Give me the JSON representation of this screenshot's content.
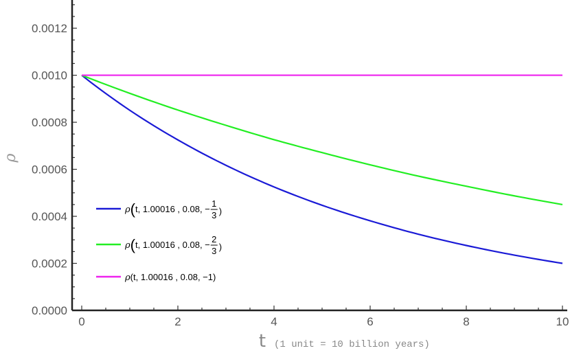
{
  "chart_data": {
    "type": "line",
    "xlabel": "t",
    "xlabel_note": "(1 unit = 10  billion years)",
    "ylabel": "ρ",
    "xlim": [
      -0.2,
      10.1
    ],
    "ylim": [
      0,
      0.00132
    ],
    "x_ticks": [
      0,
      2,
      4,
      6,
      8,
      10
    ],
    "x_tick_labels": [
      "0",
      "2",
      "4",
      "6",
      "8",
      "10"
    ],
    "y_ticks": [
      0,
      0.0002,
      0.0004,
      0.0006,
      0.0008,
      0.001,
      0.0012
    ],
    "y_tick_labels": [
      "0.0000",
      "0.0002",
      "0.0004",
      "0.0006",
      "0.0008",
      "0.0010",
      "0.0012"
    ],
    "x": [
      0,
      1,
      2,
      3,
      4,
      5,
      6,
      7,
      8,
      9,
      10
    ],
    "series": [
      {
        "name": "ρ(t, 1.00016 , 0.08, −1/3)",
        "color": "#1a1ad6",
        "values": [
          0.001,
          0.000851,
          0.000725,
          0.000617,
          0.000525,
          0.000447,
          0.000381,
          0.000324,
          0.000276,
          0.000235,
          0.0002
        ]
      },
      {
        "name": "ρ(t, 1.00016 , 0.08, −2/3)",
        "color": "#22ee22",
        "values": [
          0.001,
          0.000923,
          0.000852,
          0.000787,
          0.000726,
          0.000671,
          0.000619,
          0.000571,
          0.000528,
          0.000487,
          0.00045
        ]
      },
      {
        "name": "ρ(t, 1.00016 , 0.08, −1)",
        "color": "#ee22ee",
        "values": [
          0.001,
          0.001,
          0.001,
          0.001,
          0.001,
          0.001,
          0.001,
          0.001,
          0.001,
          0.001,
          0.001
        ]
      }
    ],
    "legend": {
      "placement": "bottom-left",
      "entries": [
        {
          "prefix": "ρ",
          "args": "t, 1.00016 , 0.08, −",
          "num": "1",
          "den": "3",
          "color": "#1a1ad6"
        },
        {
          "prefix": "ρ",
          "args": "t, 1.00016 , 0.08, −",
          "num": "2",
          "den": "3",
          "color": "#22ee22"
        },
        {
          "prefix": "ρ",
          "args": "t, 1.00016 , 0.08, −1",
          "num": "",
          "den": "",
          "color": "#ee22ee"
        }
      ]
    },
    "grid": false
  }
}
